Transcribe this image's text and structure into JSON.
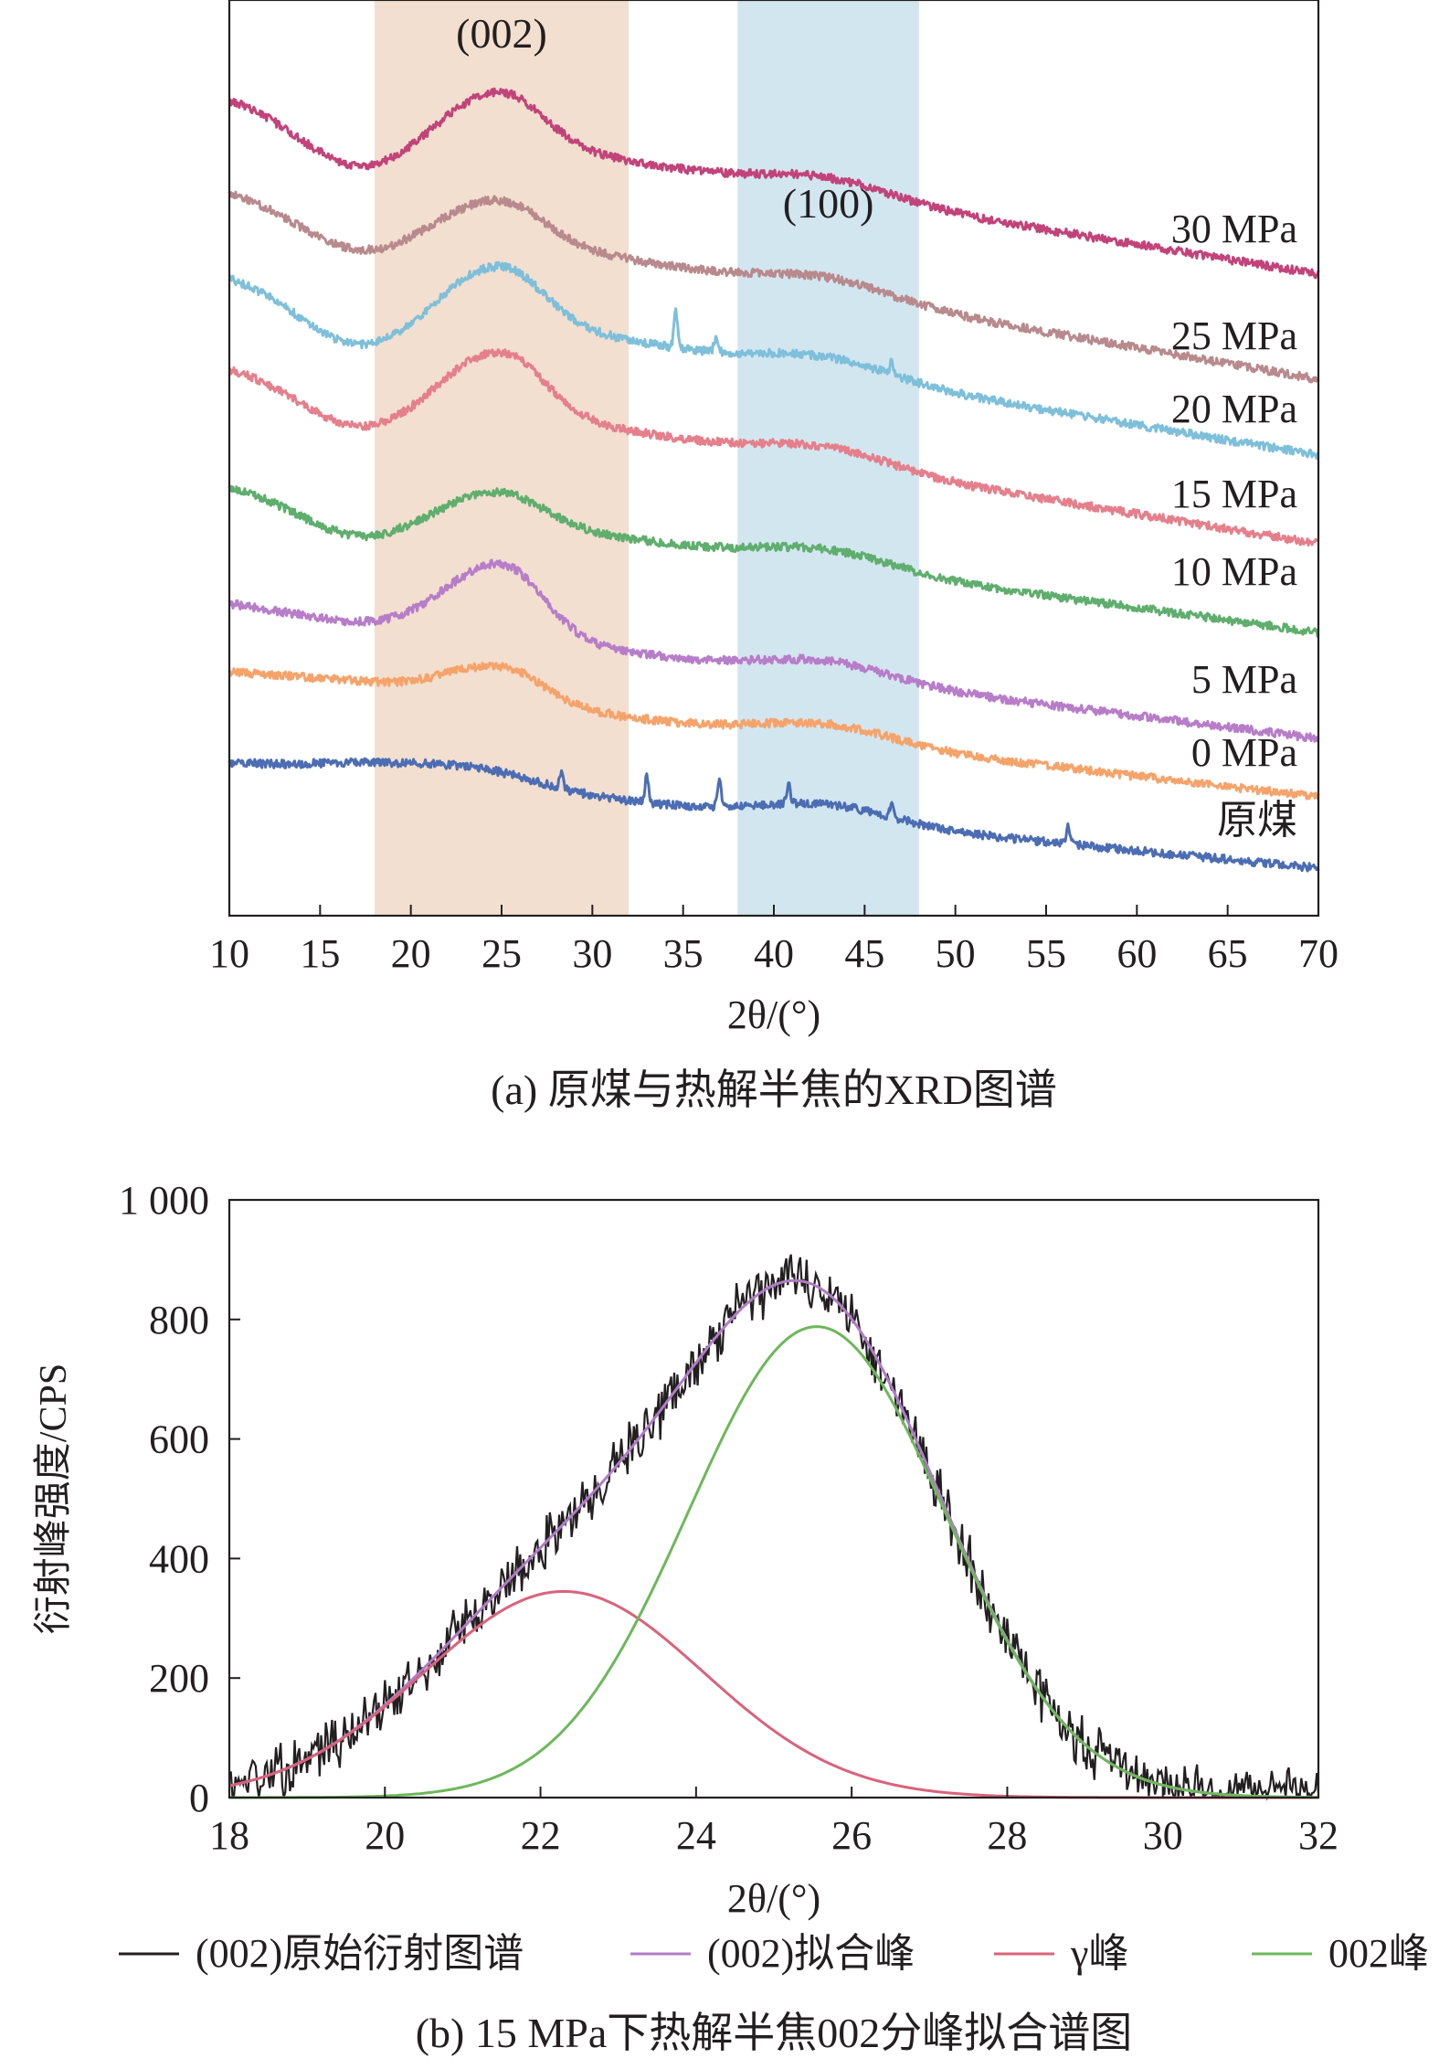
{
  "chart_data": [
    {
      "type": "line",
      "panel_caption": "(a) 原煤与热解半焦的XRD图谱",
      "xlabel": "2θ/(°)",
      "xlim": [
        10,
        70
      ],
      "x_ticks": [
        "10",
        "15",
        "20",
        "25",
        "30",
        "35",
        "40",
        "45",
        "50",
        "55",
        "60",
        "65",
        "70"
      ],
      "ylabel": "",
      "y_ticks_shown": false,
      "shaded_bands": [
        {
          "x_range": [
            18,
            32
          ],
          "color": "#f2dfcf"
        },
        {
          "x_range": [
            38,
            48
          ],
          "color": "#d2e6f0"
        }
      ],
      "peak_annotations": [
        {
          "text": "(002)",
          "x": 25
        },
        {
          "text": "(100)",
          "x": 43
        }
      ],
      "series": [
        {
          "name": "30 MPa",
          "color": "#c2437a"
        },
        {
          "name": "25 MPa",
          "color": "#b88a8d"
        },
        {
          "name": "20 MPa",
          "color": "#7ebfda"
        },
        {
          "name": "15 MPa",
          "color": "#e57f8c"
        },
        {
          "name": "10 MPa",
          "color": "#5fae6e"
        },
        {
          "name": "5 MPa",
          "color": "#b77dc9"
        },
        {
          "name": "0 MPa",
          "color": "#f5a36a"
        },
        {
          "name": "原煤",
          "color": "#4c6db3"
        }
      ]
    },
    {
      "type": "line",
      "panel_caption": "(b) 15 MPa下热解半焦002分峰拟合谱图",
      "xlabel": "2θ/(°)",
      "ylabel": "衍射峰强度/CPS",
      "xlim": [
        18,
        32
      ],
      "ylim": [
        0,
        1000
      ],
      "x_ticks": [
        "18",
        "20",
        "22",
        "24",
        "26",
        "28",
        "30",
        "32"
      ],
      "y_ticks": [
        "0",
        "200",
        "400",
        "600",
        "800",
        "1 000"
      ],
      "series": [
        {
          "name": "(002)原始衍射图谱",
          "color": "#231f20",
          "peak": [
            25.2,
            900
          ]
        },
        {
          "name": "(002)拟合峰",
          "color": "#b07cc6",
          "peak": [
            25.2,
            900
          ]
        },
        {
          "name": "γ峰",
          "color": "#d9637a",
          "center": 22.3,
          "height": 345
        },
        {
          "name": "002峰",
          "color": "#6db85a",
          "center": 25.55,
          "height": 788
        }
      ]
    }
  ]
}
